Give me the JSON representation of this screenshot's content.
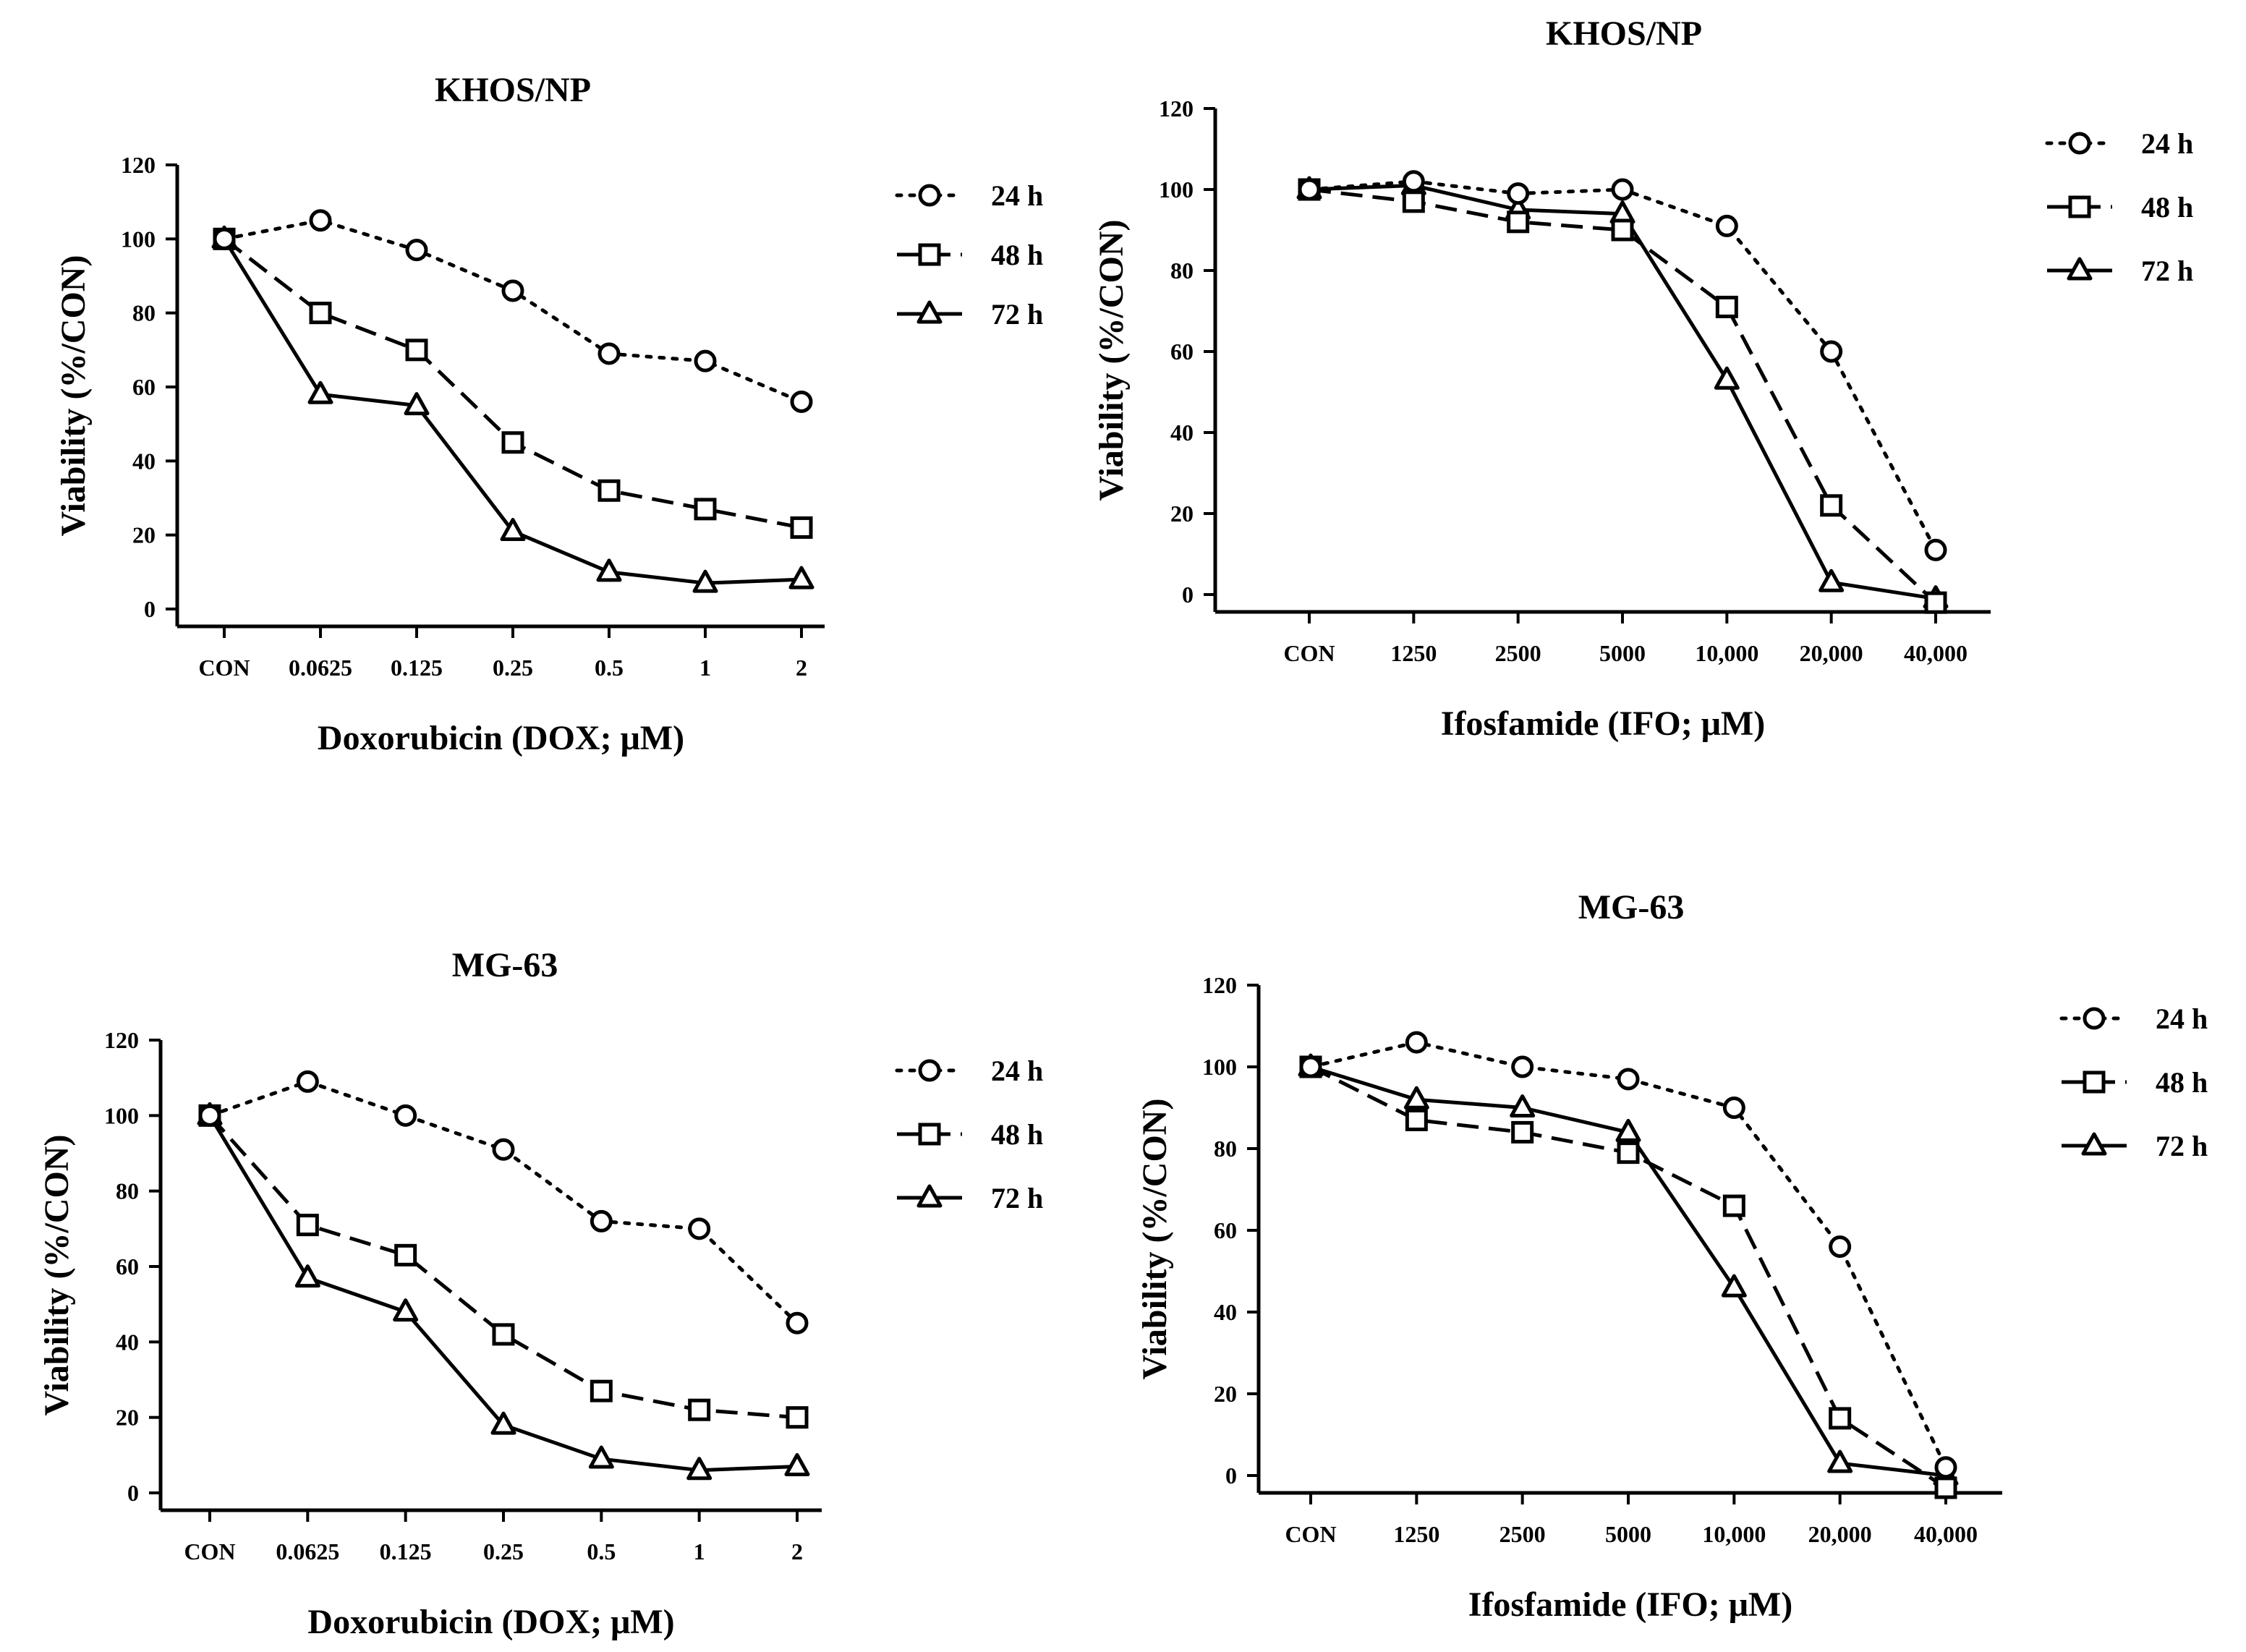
{
  "figure": {
    "legend_position": "right"
  },
  "chart_data": [
    {
      "type": "line",
      "title": "KHOS/NP",
      "xlabel": "Doxorubicin (DOX; μM)",
      "ylabel": "Viability (%/CON)",
      "categories": [
        "CON",
        "0.0625",
        "0.125",
        "0.25",
        "0.5",
        "1",
        "2"
      ],
      "ylim": [
        0,
        120
      ],
      "yticks": [
        "0",
        "20",
        "40",
        "60",
        "80",
        "100",
        "120"
      ],
      "series": [
        {
          "name": "24 h",
          "marker": "circle",
          "dash": "dotted",
          "values": [
            100,
            105,
            97,
            86,
            69,
            67,
            56
          ]
        },
        {
          "name": "48 h",
          "marker": "square",
          "dash": "dashed",
          "values": [
            100,
            80,
            70,
            45,
            32,
            27,
            22
          ]
        },
        {
          "name": "72 h",
          "marker": "triangle",
          "dash": "solid",
          "values": [
            100,
            58,
            55,
            21,
            10,
            7,
            8
          ]
        }
      ]
    },
    {
      "type": "line",
      "title": "KHOS/NP",
      "xlabel": "Ifosfamide (IFO; μM)",
      "ylabel": "Viability (%/CON)",
      "categories": [
        "CON",
        "1250",
        "2500",
        "5000",
        "10,000",
        "20,000",
        "40,000"
      ],
      "ylim": [
        0,
        120
      ],
      "yticks": [
        "0",
        "20",
        "40",
        "60",
        "80",
        "100",
        "120"
      ],
      "series": [
        {
          "name": "24 h",
          "marker": "circle",
          "dash": "dotted",
          "values": [
            100,
            102,
            99,
            100,
            91,
            60,
            11
          ]
        },
        {
          "name": "48 h",
          "marker": "square",
          "dash": "dashed",
          "values": [
            100,
            97,
            92,
            90,
            71,
            22,
            -2
          ]
        },
        {
          "name": "72 h",
          "marker": "triangle",
          "dash": "solid",
          "values": [
            100,
            101,
            95,
            94,
            53,
            3,
            -1
          ]
        }
      ]
    },
    {
      "type": "line",
      "title": "MG-63",
      "xlabel": "Doxorubicin (DOX; μM)",
      "ylabel": "Viability (%/CON)",
      "categories": [
        "CON",
        "0.0625",
        "0.125",
        "0.25",
        "0.5",
        "1",
        "2"
      ],
      "ylim": [
        0,
        120
      ],
      "yticks": [
        "0",
        "20",
        "40",
        "60",
        "80",
        "100",
        "120"
      ],
      "series": [
        {
          "name": "24 h",
          "marker": "circle",
          "dash": "dotted",
          "values": [
            100,
            109,
            100,
            91,
            72,
            70,
            45
          ]
        },
        {
          "name": "48 h",
          "marker": "square",
          "dash": "dashed",
          "values": [
            100,
            71,
            63,
            42,
            27,
            22,
            20
          ]
        },
        {
          "name": "72 h",
          "marker": "triangle",
          "dash": "solid",
          "values": [
            100,
            57,
            48,
            18,
            9,
            6,
            7
          ]
        }
      ]
    },
    {
      "type": "line",
      "title": "MG-63",
      "xlabel": "Ifosfamide (IFO; μM)",
      "ylabel": "Viability (%/CON)",
      "categories": [
        "CON",
        "1250",
        "2500",
        "5000",
        "10,000",
        "20,000",
        "40,000"
      ],
      "ylim": [
        0,
        120
      ],
      "yticks": [
        "0",
        "20",
        "40",
        "60",
        "80",
        "100",
        "120"
      ],
      "series": [
        {
          "name": "24 h",
          "marker": "circle",
          "dash": "dotted",
          "values": [
            100,
            106,
            100,
            97,
            90,
            56,
            2
          ]
        },
        {
          "name": "48 h",
          "marker": "square",
          "dash": "dashed",
          "values": [
            100,
            87,
            84,
            79,
            66,
            14,
            -3
          ]
        },
        {
          "name": "72 h",
          "marker": "triangle",
          "dash": "solid",
          "values": [
            100,
            92,
            90,
            84,
            46,
            3,
            0
          ]
        }
      ]
    }
  ]
}
